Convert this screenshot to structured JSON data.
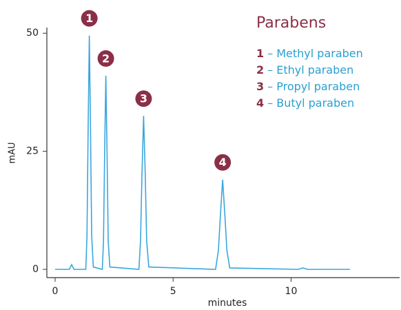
{
  "chart_data": {
    "type": "line",
    "x_label": "minutes",
    "y_label": "mAU",
    "x": [
      0,
      0.6,
      0.7,
      0.8,
      1.3,
      1.35,
      1.4,
      1.45,
      1.5,
      1.55,
      1.62,
      2.0,
      2.05,
      2.1,
      2.15,
      2.2,
      2.25,
      2.32,
      3.55,
      3.62,
      3.68,
      3.75,
      3.82,
      3.88,
      3.97,
      6.8,
      6.92,
      7.0,
      7.1,
      7.2,
      7.28,
      7.4,
      10.3,
      10.5,
      10.7,
      12.5
    ],
    "values": [
      0,
      0,
      1,
      0,
      0,
      7,
      30,
      49.5,
      30,
      7,
      0.5,
      0,
      6,
      25,
      41,
      25,
      6,
      0.5,
      0,
      6,
      20,
      32.5,
      20,
      6,
      0.5,
      0,
      4,
      11,
      19,
      11,
      4,
      0.3,
      0,
      0.3,
      0,
      0
    ],
    "color": "#3aa6dc",
    "xlim": [
      -0.35,
      14.6
    ],
    "ylim": [
      -1.75,
      51.2
    ],
    "xticks": [
      0,
      5,
      10
    ],
    "yticks": [
      0,
      25,
      50
    ],
    "peak_labels": [
      "1",
      "2",
      "3",
      "4"
    ],
    "legend_title": "Parabens",
    "legend": [
      {
        "number": "1",
        "label": "– Methyl paraben"
      },
      {
        "number": "2",
        "label": "– Ethyl paraben"
      },
      {
        "number": "3",
        "label": "– Propyl paraben"
      },
      {
        "number": "4",
        "label": "– Butyl paraben"
      }
    ]
  }
}
